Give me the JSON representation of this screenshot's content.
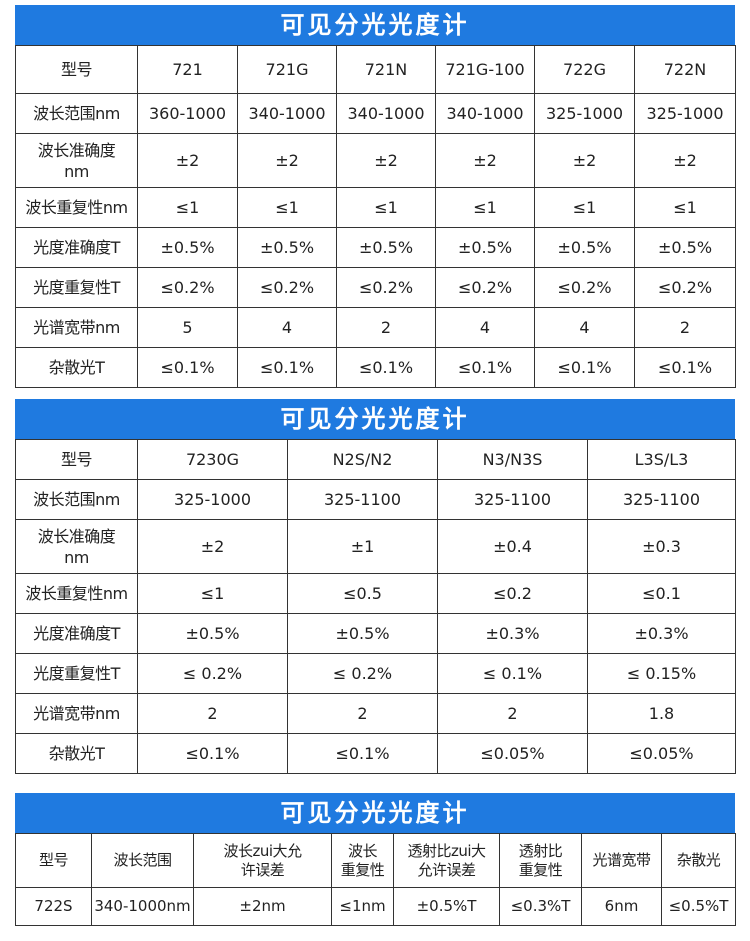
{
  "blocks": [
    {
      "title": "可见分光光度计",
      "rows": [
        [
          "型号",
          "721",
          "721G",
          "721N",
          "721G-100",
          "722G",
          "722N"
        ],
        [
          "波长范围nm",
          "360-1000",
          "340-1000",
          "340-1000",
          "340-1000",
          "325-1000",
          "325-1000"
        ],
        [
          "波长准确度\nnm",
          "±2",
          "±2",
          "±2",
          "±2",
          "±2",
          "±2"
        ],
        [
          "波长重复性nm",
          "≤1",
          "≤1",
          "≤1",
          "≤1",
          "≤1",
          "≤1"
        ],
        [
          "光度准确度T",
          "±0.5%",
          "±0.5%",
          "±0.5%",
          "±0.5%",
          "±0.5%",
          "±0.5%"
        ],
        [
          "光度重复性T",
          "≤0.2%",
          "≤0.2%",
          "≤0.2%",
          "≤0.2%",
          "≤0.2%",
          "≤0.2%"
        ],
        [
          "光谱宽带nm",
          "5",
          "4",
          "2",
          "4",
          "4",
          "2"
        ],
        [
          "杂散光T",
          "≤0.1%",
          "≤0.1%",
          "≤0.1%",
          "≤0.1%",
          "≤0.1%",
          "≤0.1%"
        ]
      ]
    },
    {
      "title": "可见分光光度计",
      "rows": [
        [
          "型号",
          "7230G",
          "N2S/N2",
          "N3/N3S",
          "L3S/L3"
        ],
        [
          "波长范围nm",
          "325-1000",
          "325-1100",
          "325-1100",
          "325-1100"
        ],
        [
          "波长准确度\nnm",
          "±2",
          "±1",
          "±0.4",
          "±0.3"
        ],
        [
          "波长重复性nm",
          "≤1",
          "≤0.5",
          "≤0.2",
          "≤0.1"
        ],
        [
          "光度准确度T",
          "±0.5%",
          "±0.5%",
          "±0.3%",
          "±0.3%"
        ],
        [
          "光度重复性T",
          "≤ 0.2%",
          "≤ 0.2%",
          "≤ 0.1%",
          "≤ 0.15%"
        ],
        [
          "光谱宽带nm",
          "2",
          "2",
          "2",
          "1.8"
        ],
        [
          "杂散光T",
          "≤0.1%",
          "≤0.1%",
          "≤0.05%",
          "≤0.05%"
        ]
      ]
    },
    {
      "title": "可见分光光度计",
      "rows": [
        [
          "型号",
          "波长范围",
          "波长zui大允\n许误差",
          "波长\n重复性",
          "透射比zui大\n允许误差",
          "透射比\n重复性",
          "光谱宽带",
          "杂散光"
        ],
        [
          "722S",
          "340-1000nm",
          "±2nm",
          "≤1nm",
          "±0.5%T",
          "≤0.3%T",
          "6nm",
          "≤0.5%T"
        ]
      ]
    }
  ]
}
